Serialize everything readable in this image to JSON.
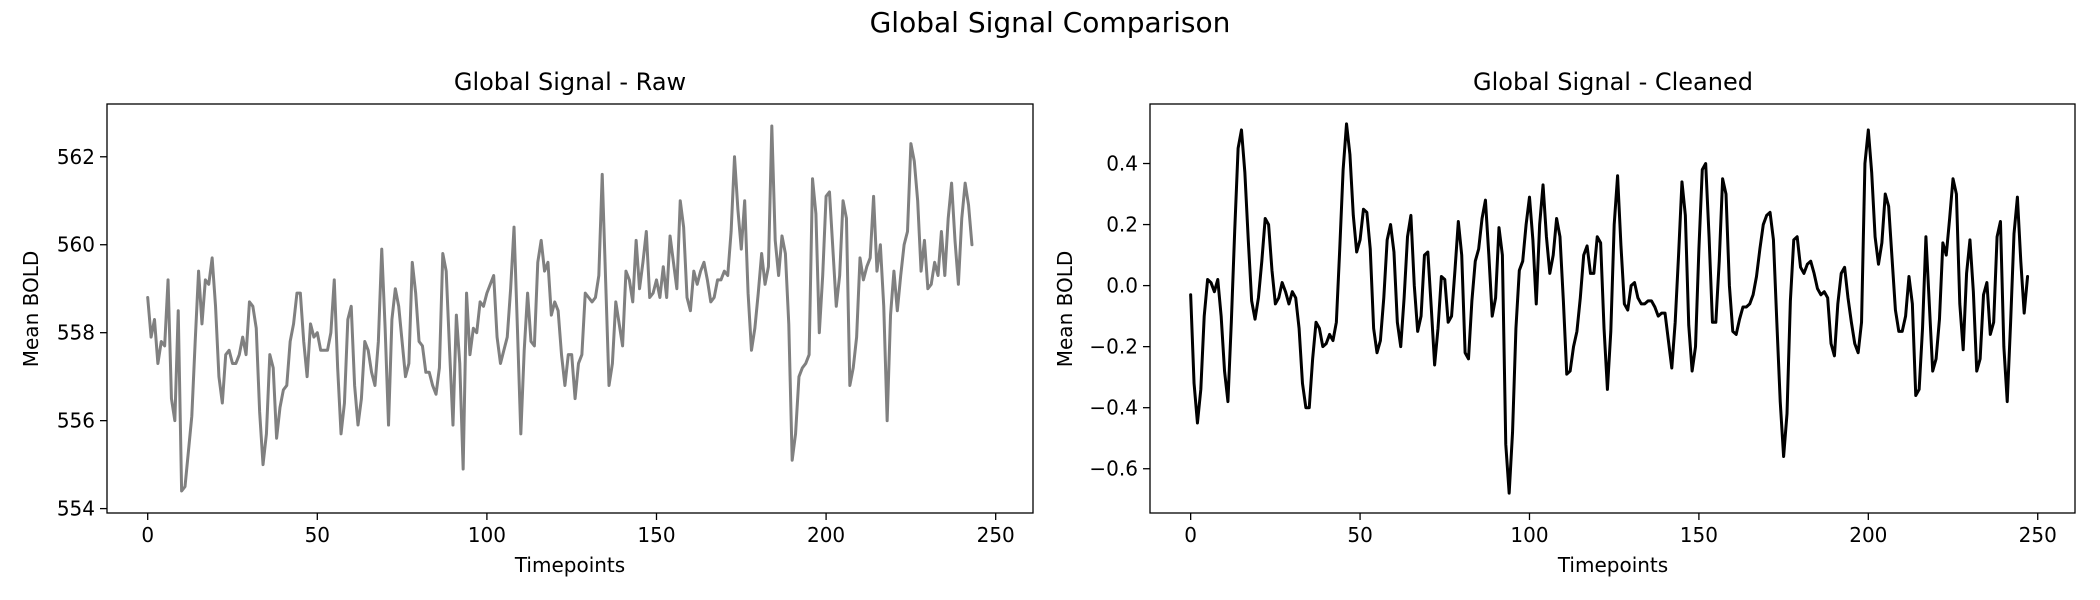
{
  "figure": {
    "suptitle": "Global Signal Comparison"
  },
  "chart_data": [
    {
      "type": "line",
      "title": "Global Signal - Raw",
      "xlabel": "Timepoints",
      "ylabel": "Mean BOLD",
      "xlim": [
        -12,
        261
      ],
      "ylim": [
        553.9,
        563.2
      ],
      "xticks": [
        0,
        50,
        100,
        150,
        200,
        250
      ],
      "yticks": [
        554,
        556,
        558,
        560,
        562
      ],
      "grid": false,
      "legend": "none",
      "series": [
        {
          "color": "#808080",
          "x_start": 0,
          "x_step": 1,
          "values": [
            558.8,
            557.9,
            558.3,
            557.3,
            557.8,
            557.7,
            559.2,
            556.5,
            556.0,
            558.5,
            554.4,
            554.5,
            555.3,
            556.1,
            557.8,
            559.4,
            558.2,
            559.2,
            559.1,
            559.7,
            558.6,
            557.0,
            556.4,
            557.5,
            557.6,
            557.3,
            557.3,
            557.5,
            557.9,
            557.5,
            558.7,
            558.6,
            558.1,
            556.2,
            555.0,
            555.7,
            557.5,
            557.2,
            555.6,
            556.3,
            556.7,
            556.8,
            557.8,
            558.2,
            558.9,
            558.9,
            557.8,
            557.0,
            558.2,
            557.9,
            558.0,
            557.6,
            557.6,
            557.6,
            558.0,
            559.2,
            557.2,
            555.7,
            556.4,
            558.3,
            558.6,
            556.8,
            555.9,
            556.5,
            557.8,
            557.6,
            557.1,
            556.8,
            557.8,
            559.9,
            558.1,
            555.9,
            558.3,
            559.0,
            558.6,
            557.8,
            557.0,
            557.3,
            559.6,
            558.9,
            557.8,
            557.7,
            557.1,
            557.1,
            556.8,
            556.6,
            557.2,
            559.8,
            559.4,
            557.6,
            555.9,
            558.4,
            557.3,
            554.9,
            558.9,
            557.5,
            558.1,
            558.0,
            558.7,
            558.6,
            558.9,
            559.1,
            559.3,
            557.9,
            557.3,
            557.6,
            557.9,
            559.0,
            560.4,
            558.1,
            555.7,
            557.6,
            558.9,
            557.8,
            557.7,
            559.6,
            560.1,
            559.4,
            559.6,
            558.4,
            558.7,
            558.5,
            557.5,
            556.8,
            557.5,
            557.5,
            556.5,
            557.3,
            557.5,
            558.9,
            558.8,
            558.7,
            558.8,
            559.3,
            561.6,
            559.2,
            556.8,
            557.3,
            558.7,
            558.2,
            557.7,
            559.4,
            559.2,
            558.7,
            560.1,
            559.0,
            559.6,
            560.3,
            558.8,
            558.9,
            559.2,
            558.8,
            559.5,
            558.8,
            560.2,
            559.6,
            559.0,
            561.0,
            560.4,
            558.8,
            558.5,
            559.4,
            559.1,
            559.4,
            559.6,
            559.2,
            558.7,
            558.8,
            559.2,
            559.2,
            559.4,
            559.3,
            560.3,
            562.0,
            560.8,
            559.9,
            561.0,
            558.9,
            557.6,
            558.1,
            558.9,
            559.8,
            559.1,
            559.5,
            562.7,
            560.1,
            559.3,
            560.2,
            559.8,
            558.2,
            555.1,
            555.7,
            557.0,
            557.2,
            557.3,
            557.5,
            561.5,
            560.7,
            558.0,
            559.3,
            561.1,
            561.2,
            559.9,
            558.6,
            559.3,
            561.0,
            560.6,
            556.8,
            557.2,
            557.9,
            559.7,
            559.2,
            559.5,
            559.7,
            561.1,
            559.4,
            560.0,
            558.6,
            556.0,
            558.4,
            559.4,
            558.5,
            559.3,
            560.0,
            560.3,
            562.3,
            561.9,
            561.0,
            559.4,
            560.1,
            559.0,
            559.1,
            559.6,
            559.3,
            560.3,
            559.3,
            560.6,
            561.4,
            560.1,
            559.1,
            560.6,
            561.4,
            560.9,
            560.0
          ]
        }
      ]
    },
    {
      "type": "line",
      "title": "Global Signal - Cleaned",
      "xlabel": "Timepoints",
      "ylabel": "Mean BOLD",
      "xlim": [
        -12,
        261
      ],
      "ylim": [
        -0.745,
        0.595
      ],
      "xticks": [
        0,
        50,
        100,
        150,
        200,
        250
      ],
      "yticks": [
        -0.6,
        -0.4,
        -0.2,
        0.0,
        0.2,
        0.4
      ],
      "grid": false,
      "legend": "none",
      "series": [
        {
          "color": "#000000",
          "x_start": 0,
          "x_step": 1,
          "values": [
            -0.03,
            -0.32,
            -0.45,
            -0.34,
            -0.1,
            0.02,
            0.01,
            -0.02,
            0.02,
            -0.1,
            -0.28,
            -0.38,
            -0.12,
            0.18,
            0.45,
            0.51,
            0.37,
            0.15,
            -0.05,
            -0.11,
            -0.04,
            0.08,
            0.22,
            0.2,
            0.05,
            -0.06,
            -0.04,
            0.01,
            -0.02,
            -0.06,
            -0.02,
            -0.04,
            -0.14,
            -0.32,
            -0.4,
            -0.4,
            -0.24,
            -0.12,
            -0.14,
            -0.2,
            -0.19,
            -0.16,
            -0.18,
            -0.12,
            0.12,
            0.38,
            0.53,
            0.43,
            0.23,
            0.11,
            0.15,
            0.25,
            0.24,
            0.12,
            -0.14,
            -0.22,
            -0.18,
            -0.04,
            0.15,
            0.2,
            0.11,
            -0.12,
            -0.2,
            -0.04,
            0.16,
            0.23,
            0.0,
            -0.15,
            -0.1,
            0.1,
            0.11,
            -0.07,
            -0.26,
            -0.14,
            0.03,
            0.02,
            -0.12,
            -0.1,
            0.05,
            0.21,
            0.1,
            -0.22,
            -0.24,
            -0.05,
            0.08,
            0.12,
            0.22,
            0.28,
            0.1,
            -0.1,
            -0.04,
            0.19,
            0.1,
            -0.52,
            -0.68,
            -0.48,
            -0.14,
            0.05,
            0.08,
            0.2,
            0.29,
            0.15,
            -0.06,
            0.2,
            0.33,
            0.16,
            0.04,
            0.1,
            0.22,
            0.16,
            -0.05,
            -0.29,
            -0.28,
            -0.2,
            -0.15,
            -0.04,
            0.1,
            0.13,
            0.04,
            0.04,
            0.16,
            0.14,
            -0.14,
            -0.34,
            -0.15,
            0.2,
            0.36,
            0.13,
            -0.06,
            -0.08,
            0.0,
            0.01,
            -0.04,
            -0.06,
            -0.06,
            -0.05,
            -0.05,
            -0.07,
            -0.1,
            -0.09,
            -0.09,
            -0.18,
            -0.27,
            -0.12,
            0.1,
            0.34,
            0.23,
            -0.13,
            -0.28,
            -0.2,
            0.12,
            0.38,
            0.4,
            0.16,
            -0.12,
            -0.12,
            0.08,
            0.35,
            0.3,
            0.0,
            -0.15,
            -0.16,
            -0.11,
            -0.07,
            -0.07,
            -0.06,
            -0.03,
            0.03,
            0.12,
            0.2,
            0.23,
            0.24,
            0.15,
            -0.12,
            -0.38,
            -0.56,
            -0.42,
            -0.05,
            0.15,
            0.16,
            0.06,
            0.04,
            0.07,
            0.08,
            0.04,
            -0.01,
            -0.03,
            -0.02,
            -0.04,
            -0.19,
            -0.23,
            -0.06,
            0.04,
            0.06,
            -0.04,
            -0.12,
            -0.19,
            -0.22,
            -0.12,
            0.4,
            0.51,
            0.37,
            0.16,
            0.07,
            0.14,
            0.3,
            0.26,
            0.09,
            -0.08,
            -0.15,
            -0.15,
            -0.1,
            0.03,
            -0.06,
            -0.36,
            -0.34,
            -0.14,
            0.16,
            -0.06,
            -0.28,
            -0.24,
            -0.11,
            0.14,
            0.1,
            0.22,
            0.35,
            0.3,
            -0.06,
            -0.21,
            0.04,
            0.15,
            -0.02,
            -0.28,
            -0.24,
            -0.03,
            0.01,
            -0.16,
            -0.12,
            0.16,
            0.21,
            -0.2,
            -0.38,
            -0.12,
            0.17,
            0.29,
            0.08,
            -0.09,
            0.03
          ]
        }
      ]
    }
  ]
}
